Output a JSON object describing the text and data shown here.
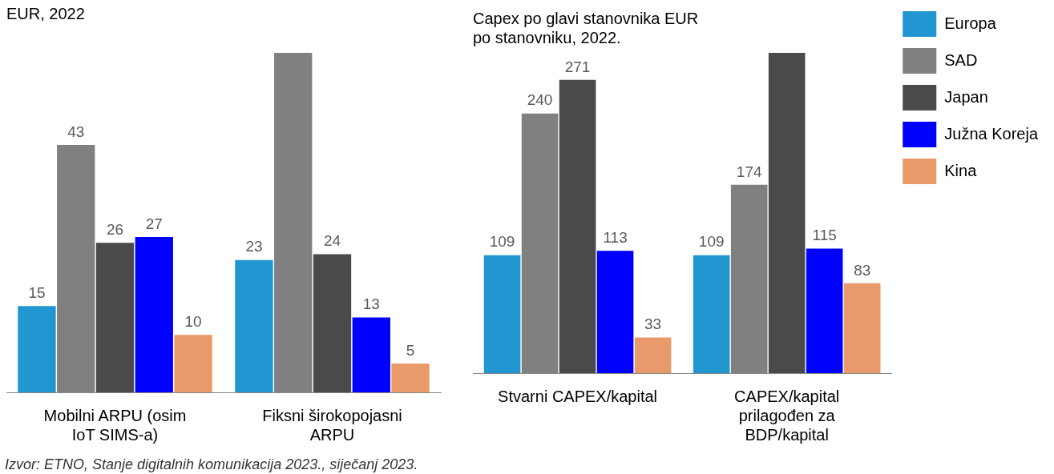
{
  "chart_data": [
    {
      "type": "bar",
      "title": "EUR, 2022",
      "categories": [
        "Mobilni ARPU (osim IoT SIMS-a)",
        "Fiksni širokopojasni ARPU"
      ],
      "ylim": [
        0,
        59
      ],
      "tick_labels": "x",
      "legend": false,
      "annotations": [
        "Izvor: ETNO, Stanje digitalnih komunikacija 2023., siječanj 2023."
      ],
      "series": [
        {
          "color": "#2196d0",
          "values": [
            15,
            23
          ],
          "value_labels": [
            "15",
            "23"
          ]
        },
        {
          "color": "#808080",
          "values": [
            43,
            59
          ],
          "value_labels": [
            "43",
            null
          ]
        },
        {
          "color": "#4a4a4a",
          "values": [
            26,
            24
          ],
          "value_labels": [
            "26",
            "24"
          ]
        },
        {
          "color": "#0000ff",
          "values": [
            27,
            13
          ],
          "value_labels": [
            "27",
            "13"
          ]
        },
        {
          "color": "#e89a6a",
          "values": [
            10,
            5
          ],
          "value_labels": [
            "10",
            "5"
          ]
        }
      ]
    },
    {
      "type": "bar",
      "title": "Capex po glavi stanovnika EUR po stanovniku, 2022.",
      "categories": [
        "Stvarni CAPEX/kapital",
        "CAPEX/kapital prilagođen za BDP/kapital"
      ],
      "ylim": [
        0,
        296
      ],
      "tick_labels": "x",
      "legend": "right",
      "series": [
        {
          "name": "Europa",
          "color": "#2196d0",
          "values": [
            109,
            109
          ],
          "value_labels": [
            "109",
            "109"
          ]
        },
        {
          "name": "SAD",
          "color": "#808080",
          "values": [
            240,
            174
          ],
          "value_labels": [
            "240",
            "174"
          ]
        },
        {
          "name": "Japan",
          "color": "#4a4a4a",
          "values": [
            271,
            296
          ],
          "value_labels": [
            "271",
            null
          ]
        },
        {
          "name": "Južna Koreja",
          "color": "#0000ff",
          "values": [
            113,
            115
          ],
          "value_labels": [
            "113",
            "115"
          ]
        },
        {
          "name": "Kina",
          "color": "#e89a6a",
          "values": [
            33,
            83
          ],
          "value_labels": [
            "33",
            "83"
          ]
        }
      ]
    }
  ]
}
